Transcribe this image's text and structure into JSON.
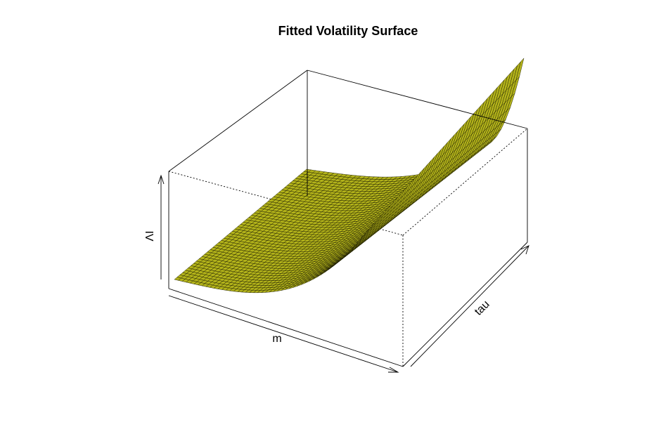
{
  "chart_data": {
    "type": "surface",
    "title": "Fitted Volatility Surface",
    "xlabel": "m",
    "ylabel": "tau",
    "zlabel": "IV",
    "surface_color": "#b3b31a",
    "mesh_color": "#1a1a00",
    "grid_on": false,
    "shape": "IV rises steeply toward high m, nearly flat at low m; slight decrease along tau"
  }
}
